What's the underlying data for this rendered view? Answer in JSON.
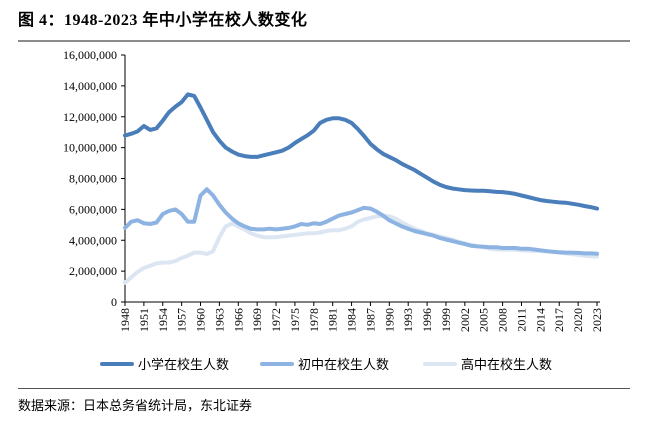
{
  "title": "图 4：1948-2023 年中小学在校人数变化",
  "source": "数据来源：日本总务省统计局，东北证券",
  "chart_data": {
    "type": "line",
    "title": "图 4：1948-2023 年中小学在校人数变化",
    "xlabel": "",
    "ylabel": "",
    "ylim": [
      0,
      16000000
    ],
    "yticks": [
      0,
      2000000,
      4000000,
      6000000,
      8000000,
      10000000,
      12000000,
      14000000,
      16000000
    ],
    "ytick_labels": [
      "0",
      "2,000,000",
      "4,000,000",
      "6,000,000",
      "8,000,000",
      "10,000,000",
      "12,000,000",
      "14,000,000",
      "16,000,000"
    ],
    "xlim": [
      1948,
      2023
    ],
    "xtick_labels": [
      "1948",
      "1951",
      "1954",
      "1957",
      "1960",
      "1963",
      "1966",
      "1969",
      "1972",
      "1975",
      "1978",
      "1981",
      "1984",
      "1987",
      "1990",
      "1993",
      "1996",
      "1999",
      "2002",
      "2005",
      "2008",
      "2011",
      "2014",
      "2017",
      "2020",
      "2023"
    ],
    "grid": false,
    "legend_placement": "bottom",
    "x_start": 1948,
    "series": [
      {
        "name": "小学在校生人数",
        "color": "#4a7ebb",
        "values": [
          10780000,
          10900000,
          11050000,
          11400000,
          11150000,
          11250000,
          11750000,
          12300000,
          12650000,
          12950000,
          13450000,
          13350000,
          12600000,
          11800000,
          11000000,
          10450000,
          10000000,
          9750000,
          9550000,
          9450000,
          9400000,
          9400000,
          9500000,
          9600000,
          9700000,
          9800000,
          10000000,
          10300000,
          10550000,
          10800000,
          11100000,
          11600000,
          11800000,
          11900000,
          11900000,
          11800000,
          11600000,
          11200000,
          10750000,
          10250000,
          9900000,
          9600000,
          9400000,
          9200000,
          8950000,
          8750000,
          8550000,
          8300000,
          8050000,
          7800000,
          7600000,
          7450000,
          7350000,
          7300000,
          7250000,
          7220000,
          7200000,
          7200000,
          7180000,
          7130000,
          7120000,
          7070000,
          7000000,
          6900000,
          6800000,
          6700000,
          6600000,
          6540000,
          6500000,
          6450000,
          6430000,
          6370000,
          6300000,
          6220000,
          6150000,
          6050000
        ]
      },
      {
        "name": "初中在校生人数",
        "color": "#8db3e2",
        "values": [
          4800000,
          5200000,
          5300000,
          5100000,
          5050000,
          5150000,
          5700000,
          5900000,
          6000000,
          5700000,
          5200000,
          5200000,
          6900000,
          7300000,
          6900000,
          6300000,
          5800000,
          5400000,
          5100000,
          4900000,
          4750000,
          4700000,
          4700000,
          4750000,
          4700000,
          4750000,
          4800000,
          4900000,
          5050000,
          5000000,
          5100000,
          5050000,
          5200000,
          5400000,
          5600000,
          5700000,
          5800000,
          5950000,
          6100000,
          6050000,
          5850000,
          5600000,
          5300000,
          5100000,
          4900000,
          4750000,
          4600000,
          4500000,
          4400000,
          4300000,
          4150000,
          4050000,
          3950000,
          3850000,
          3750000,
          3650000,
          3600000,
          3580000,
          3550000,
          3550000,
          3500000,
          3500000,
          3500000,
          3450000,
          3450000,
          3400000,
          3350000,
          3300000,
          3250000,
          3220000,
          3200000,
          3200000,
          3180000,
          3150000,
          3150000,
          3120000
        ]
      },
      {
        "name": "高中在校生人数",
        "color": "#dce6f2",
        "values": [
          1250000,
          1600000,
          1950000,
          2200000,
          2350000,
          2500000,
          2550000,
          2550000,
          2650000,
          2850000,
          3000000,
          3200000,
          3200000,
          3100000,
          3300000,
          4200000,
          4900000,
          5100000,
          4900000,
          4700000,
          4450000,
          4300000,
          4200000,
          4200000,
          4200000,
          4250000,
          4300000,
          4350000,
          4400000,
          4450000,
          4450000,
          4500000,
          4600000,
          4650000,
          4650000,
          4750000,
          4900000,
          5200000,
          5350000,
          5450000,
          5550000,
          5600000,
          5550000,
          5400000,
          5150000,
          4950000,
          4750000,
          4600000,
          4450000,
          4350000,
          4250000,
          4150000,
          4050000,
          3900000,
          3800000,
          3700000,
          3620000,
          3550000,
          3450000,
          3400000,
          3400000,
          3380000,
          3380000,
          3350000,
          3320000,
          3320000,
          3300000,
          3280000,
          3250000,
          3200000,
          3150000,
          3100000,
          3050000,
          3000000,
          2970000,
          2950000
        ]
      }
    ]
  }
}
